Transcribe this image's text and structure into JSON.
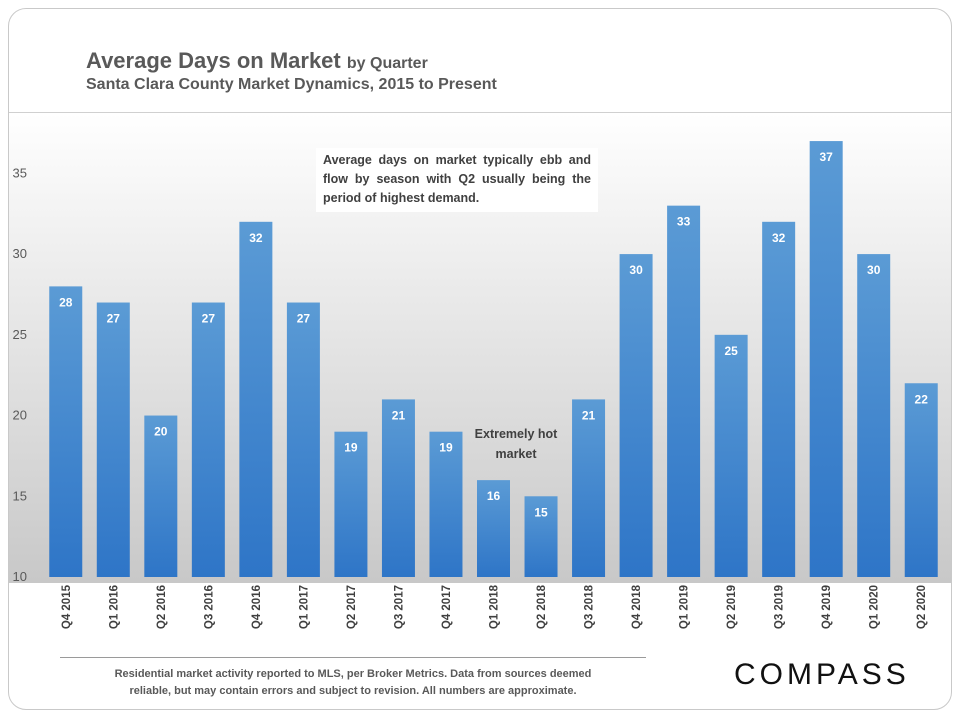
{
  "header": {
    "title_main": "Average Days on Market",
    "title_suffix": "by Quarter",
    "subtitle": "Santa Clara County Market Dynamics, 2015 to Present"
  },
  "annotations": {
    "season_note": "Average days on market typically ebb and flow by season with Q2 usually being the period of highest demand.",
    "hot_market": "Extremely hot market"
  },
  "footer": {
    "note_line1": "Residential market activity reported to MLS, per Broker Metrics. Data from sources deemed",
    "note_line2": "reliable, but may contain errors and subject to revision. All numbers are approximate.",
    "logo": "COMPASS"
  },
  "colors": {
    "bar_top": "#5b9bd5",
    "bar_bottom": "#2e75c7",
    "text": "#595959"
  },
  "chart_data": {
    "type": "bar",
    "categories": [
      "Q4 2015",
      "Q1 2016",
      "Q2 2016",
      "Q3 2016",
      "Q4 2016",
      "Q1 2017",
      "Q2 2017",
      "Q3 2017",
      "Q4 2017",
      "Q1 2018",
      "Q2 2018",
      "Q3 2018",
      "Q4 2018",
      "Q1 2019",
      "Q2 2019",
      "Q3 2019",
      "Q4 2019",
      "Q1 2020",
      "Q2 2020"
    ],
    "values": [
      28,
      27,
      20,
      27,
      32,
      27,
      19,
      21,
      19,
      16,
      15,
      21,
      30,
      33,
      25,
      32,
      37,
      30,
      22
    ],
    "data_labels": true,
    "ylim": [
      10,
      37.5
    ],
    "yticks": [
      10,
      15,
      20,
      25,
      30,
      35
    ],
    "grid": false,
    "legend": "none",
    "title": "Average Days on Market by Quarter",
    "subtitle": "Santa Clara County Market Dynamics, 2015 to Present",
    "xlabel": "",
    "ylabel": ""
  }
}
